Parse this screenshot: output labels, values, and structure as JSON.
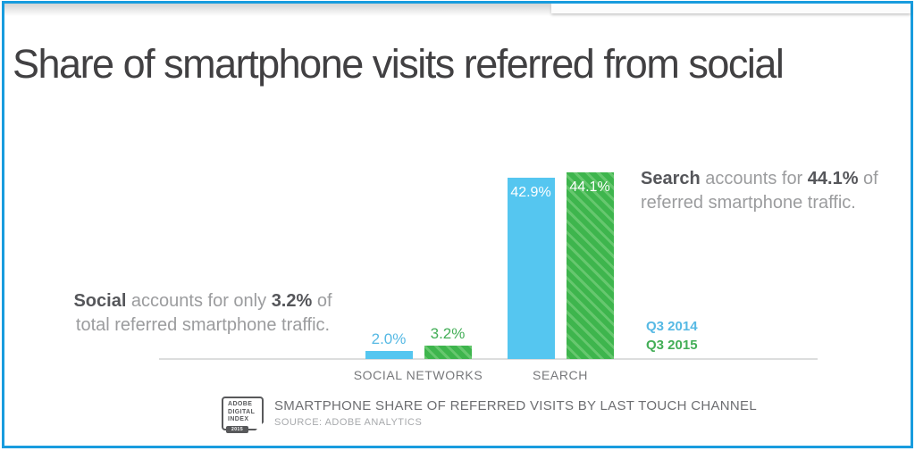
{
  "title": "Share of smartphone visits referred from social",
  "chart_data": {
    "type": "bar",
    "categories": [
      "SOCIAL NETWORKS",
      "SEARCH"
    ],
    "series": [
      {
        "name": "Q3 2014",
        "color": "#55C6F0",
        "label_color": "#56B9E4",
        "values": [
          2.0,
          42.9
        ]
      },
      {
        "name": "Q3 2015",
        "color": "#3EB54D",
        "stripe_color": "#66C76E",
        "label_color": "#43AE57",
        "values": [
          3.2,
          44.1
        ]
      }
    ],
    "value_labels": [
      [
        "2.0%",
        "42.9%"
      ],
      [
        "3.2%",
        "44.1%"
      ]
    ],
    "ylim": [
      0,
      45
    ],
    "grid": false,
    "legend_position": "right",
    "axis_color": "#dcdddd"
  },
  "annotations": {
    "left": [
      {
        "t": "Social",
        "b": true
      },
      {
        "t": " accounts for only ",
        "b": false
      },
      {
        "t": "3.2%",
        "b": true
      },
      {
        "t": " of",
        "b": false
      },
      {
        "br": true
      },
      {
        "t": "total referred smartphone traffic.",
        "b": false
      }
    ],
    "right": [
      {
        "t": "Search",
        "b": true
      },
      {
        "t": " accounts for ",
        "b": false
      },
      {
        "t": "44.1%",
        "b": true
      },
      {
        "t": " of",
        "b": false
      },
      {
        "br": true
      },
      {
        "t": "referred smartphone traffic.",
        "b": false
      }
    ]
  },
  "footer": {
    "logo_lines": [
      "ADOBE",
      "DIGITAL",
      "INDEX"
    ],
    "logo_badge": "2015",
    "caption": "SMARTPHONE SHARE OF REFERRED VISITS BY LAST TOUCH CHANNEL",
    "source": "SOURCE: ADOBE ANALYTICS"
  },
  "colors": {
    "frame_border": "#189CDE",
    "title_text": "#414042",
    "category_label": "#77787b"
  }
}
